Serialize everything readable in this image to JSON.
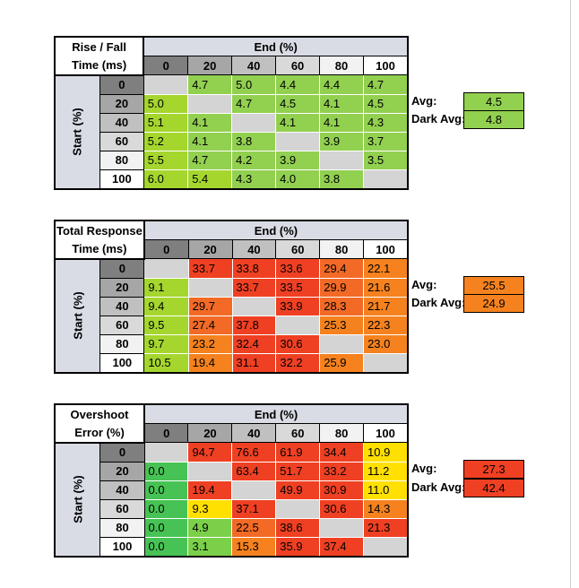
{
  "colors": {
    "header_bg": "#d9dce4",
    "diag": "#d4d4d4",
    "fast_green": "#92d050",
    "lime": "#a5d62e",
    "dark_green": "#46c354",
    "yellow": "#ffea00",
    "orange": "#f5821f",
    "red": "#ef4023"
  },
  "col_headers": [
    "0",
    "20",
    "40",
    "60",
    "80",
    "100"
  ],
  "row_headers": [
    "0",
    "20",
    "40",
    "60",
    "80",
    "100"
  ],
  "end_label": "End (%)",
  "start_label": "Start (%)",
  "avg_label": "Avg:",
  "dark_avg_label": "Dark Avg:",
  "tables": [
    {
      "title_line1": "Rise / Fall",
      "title_line2": "Time (ms)",
      "avg": "4.5",
      "dark_avg": "4.8",
      "avg_color": "#92d050",
      "dark_avg_color": "#92d050",
      "rows": [
        [
          "",
          "4.7",
          "5.0",
          "4.4",
          "4.4",
          "4.7"
        ],
        [
          "5.0",
          "",
          "4.7",
          "4.5",
          "4.1",
          "4.5"
        ],
        [
          "5.1",
          "4.1",
          "",
          "4.1",
          "4.1",
          "4.3"
        ],
        [
          "5.2",
          "4.1",
          "3.8",
          "",
          "3.9",
          "3.7"
        ],
        [
          "5.5",
          "4.7",
          "4.2",
          "3.9",
          "",
          "3.5"
        ],
        [
          "6.0",
          "5.4",
          "4.3",
          "4.0",
          "3.8",
          ""
        ]
      ],
      "colors": [
        [
          "#d4d4d4",
          "#92d050",
          "#92d050",
          "#92d050",
          "#92d050",
          "#92d050"
        ],
        [
          "#a5d62e",
          "#d4d4d4",
          "#92d050",
          "#92d050",
          "#92d050",
          "#92d050"
        ],
        [
          "#a5d62e",
          "#92d050",
          "#d4d4d4",
          "#92d050",
          "#92d050",
          "#92d050"
        ],
        [
          "#a5d62e",
          "#92d050",
          "#92d050",
          "#d4d4d4",
          "#92d050",
          "#92d050"
        ],
        [
          "#a5d62e",
          "#92d050",
          "#92d050",
          "#92d050",
          "#d4d4d4",
          "#92d050"
        ],
        [
          "#a5d62e",
          "#a5d62e",
          "#92d050",
          "#92d050",
          "#92d050",
          "#d4d4d4"
        ]
      ]
    },
    {
      "title_line1": "Total Response",
      "title_line2": "Time (ms)",
      "avg": "25.5",
      "dark_avg": "24.9",
      "avg_color": "#f5821f",
      "dark_avg_color": "#f5821f",
      "rows": [
        [
          "",
          "33.7",
          "33.8",
          "33.6",
          "29.4",
          "22.1"
        ],
        [
          "9.1",
          "",
          "33.7",
          "33.5",
          "29.9",
          "21.6"
        ],
        [
          "9.4",
          "29.7",
          "",
          "33.9",
          "28.3",
          "21.7"
        ],
        [
          "9.5",
          "27.4",
          "37.8",
          "",
          "25.3",
          "22.3"
        ],
        [
          "9.7",
          "23.2",
          "32.4",
          "30.6",
          "",
          "23.0"
        ],
        [
          "10.5",
          "19.4",
          "31.1",
          "32.2",
          "25.9",
          ""
        ]
      ],
      "colors": [
        [
          "#d4d4d4",
          "#ef4023",
          "#ef4023",
          "#ef4023",
          "#f26a26",
          "#f5821f"
        ],
        [
          "#a5d62e",
          "#d4d4d4",
          "#ef4023",
          "#ef4023",
          "#f26a26",
          "#f5821f"
        ],
        [
          "#a5d62e",
          "#f26a26",
          "#d4d4d4",
          "#ef4023",
          "#f26a26",
          "#f5821f"
        ],
        [
          "#a5d62e",
          "#f26a26",
          "#ef4023",
          "#d4d4d4",
          "#f5821f",
          "#f5821f"
        ],
        [
          "#a5d62e",
          "#f5821f",
          "#ef4023",
          "#ef4023",
          "#d4d4d4",
          "#f5821f"
        ],
        [
          "#a5d62e",
          "#f5821f",
          "#ef4023",
          "#ef4023",
          "#f5821f",
          "#d4d4d4"
        ]
      ]
    },
    {
      "title_line1": "Overshoot",
      "title_line2": "Error (%)",
      "avg": "27.3",
      "dark_avg": "42.4",
      "avg_color": "#ef4023",
      "dark_avg_color": "#ef4023",
      "rows": [
        [
          "",
          "94.7",
          "76.6",
          "61.9",
          "34.4",
          "10.9"
        ],
        [
          "0.0",
          "",
          "63.4",
          "51.7",
          "33.2",
          "11.2"
        ],
        [
          "0.0",
          "19.4",
          "",
          "49.9",
          "30.9",
          "11.0"
        ],
        [
          "0.0",
          "9.3",
          "37.1",
          "",
          "30.6",
          "14.3"
        ],
        [
          "0.0",
          "4.9",
          "22.5",
          "38.6",
          "",
          "21.3"
        ],
        [
          "0.0",
          "3.1",
          "15.3",
          "35.9",
          "37.4",
          ""
        ]
      ],
      "colors": [
        [
          "#d4d4d4",
          "#ef4023",
          "#ef4023",
          "#ef4023",
          "#ef4023",
          "#ffe000"
        ],
        [
          "#46c354",
          "#d4d4d4",
          "#ef4023",
          "#ef4023",
          "#ef4023",
          "#ffe000"
        ],
        [
          "#46c354",
          "#ef4023",
          "#d4d4d4",
          "#ef4023",
          "#ef4023",
          "#ffe000"
        ],
        [
          "#46c354",
          "#ffe000",
          "#ef4023",
          "#d4d4d4",
          "#ef4023",
          "#f5821f"
        ],
        [
          "#46c354",
          "#7bd04a",
          "#f26a26",
          "#ef4023",
          "#d4d4d4",
          "#ef4023"
        ],
        [
          "#46c354",
          "#7bd04a",
          "#f5821f",
          "#ef4023",
          "#ef4023",
          "#d4d4d4"
        ]
      ]
    }
  ]
}
